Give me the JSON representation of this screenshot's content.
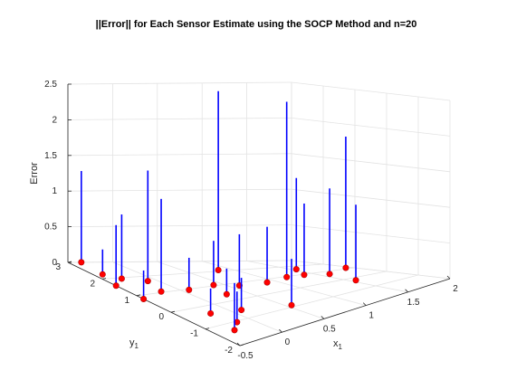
{
  "chart_data": {
    "type": "scatter",
    "plot_style": "stem3",
    "title": "||Error|| for Each Sensor Estimate using the SOCP Method and n=20",
    "xlabel": "x",
    "xlabel_sub": "1",
    "ylabel": "y",
    "ylabel_sub": "1",
    "zlabel": "Error",
    "xlim": [
      -0.5,
      2
    ],
    "ylim": [
      -2,
      3
    ],
    "zlim": [
      0,
      2.5
    ],
    "x_ticks": [
      "-0.5",
      "0",
      "0.5",
      "1",
      "1.5",
      "2"
    ],
    "y_ticks": [
      "-2",
      "-1",
      "0",
      "1",
      "2",
      "3"
    ],
    "z_ticks": [
      "0",
      "0.5",
      "1",
      "1.5",
      "2",
      "2.5"
    ],
    "grid": true,
    "stem_color": "#0000ff",
    "marker_color": "#ff0000",
    "points": [
      {
        "x": 1.95,
        "y": 1.15,
        "z": 1.84
      },
      {
        "x": 0.85,
        "y": 2.1,
        "z": 2.51
      },
      {
        "x": 1.55,
        "y": 1.6,
        "z": 1.28
      },
      {
        "x": 1.2,
        "y": 0.95,
        "z": 2.46
      },
      {
        "x": 1.6,
        "y": 0.7,
        "z": 1.2
      },
      {
        "x": 1.4,
        "y": 0.95,
        "z": 1.0
      },
      {
        "x": 1.55,
        "y": -0.25,
        "z": 1.06
      },
      {
        "x": 0.9,
        "y": 0.75,
        "z": 0.78
      },
      {
        "x": 0.6,
        "y": 0.8,
        "z": 0.72
      },
      {
        "x": 0.4,
        "y": 1.05,
        "z": 0.62
      },
      {
        "x": 0.3,
        "y": 0.4,
        "z": 0.36
      },
      {
        "x": 0.08,
        "y": 0.95,
        "z": 0.45
      },
      {
        "x": 0.55,
        "y": -0.9,
        "z": 0.65
      },
      {
        "x": 0.1,
        "y": -0.55,
        "z": 0.45
      },
      {
        "x": -0.2,
        "y": 1.05,
        "z": 1.3
      },
      {
        "x": -0.1,
        "y": 1.7,
        "z": 1.55
      },
      {
        "x": -0.3,
        "y": 1.95,
        "z": 0.9
      },
      {
        "x": -0.5,
        "y": 1.6,
        "z": 0.85
      },
      {
        "x": -0.2,
        "y": -0.4,
        "z": 0.35
      },
      {
        "x": -0.5,
        "y": 0.8,
        "z": 0.4
      },
      {
        "x": -0.4,
        "y": 2.25,
        "z": 0.35
      },
      {
        "x": -0.15,
        "y": -1.05,
        "z": 0.43
      },
      {
        "x": -0.3,
        "y": -1.35,
        "z": 0.66
      },
      {
        "x": -0.35,
        "y": 3.0,
        "z": 1.28
      }
    ]
  }
}
